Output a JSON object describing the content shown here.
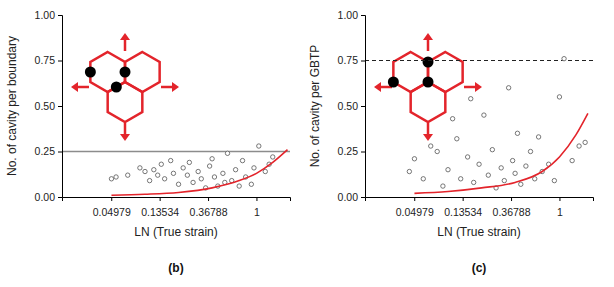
{
  "chart_data": [
    {
      "type": "scatter",
      "title": "(b)",
      "x_label": "LN (True strain)",
      "y_label": "No. of cavity per boundary",
      "log": "x",
      "grid": false,
      "xlim": [
        0.018,
        2.0
      ],
      "xticks": [
        0.04979,
        0.13534,
        0.36788,
        1
      ],
      "ylim": [
        0,
        1
      ],
      "yticks": [
        {
          "value": 0,
          "label": "0.00"
        },
        {
          "value": 0.25,
          "label": "0.25"
        },
        {
          "value": 0.5,
          "label": "0.50"
        },
        {
          "value": 0.75,
          "label": "0.75"
        },
        {
          "value": 1,
          "label": "1.00"
        }
      ],
      "series": [
        {
          "type": "line",
          "color": "#8c8c8c",
          "line_style": "solid",
          "x": [
            0.018,
            2.0
          ],
          "values": [
            0.25,
            0.25
          ]
        },
        {
          "type": "scatter",
          "color": "#555555",
          "marker": "open_circle",
          "x": [
            0.05,
            0.055,
            0.07,
            0.09,
            0.1,
            0.11,
            0.12,
            0.13,
            0.14,
            0.15,
            0.17,
            0.18,
            0.2,
            0.22,
            0.24,
            0.25,
            0.27,
            0.3,
            0.32,
            0.35,
            0.38,
            0.4,
            0.42,
            0.45,
            0.5,
            0.52,
            0.55,
            0.6,
            0.65,
            0.7,
            0.75,
            0.8,
            0.9,
            0.95,
            1.05,
            1.2,
            1.3,
            1.4
          ],
          "values": [
            0.1,
            0.11,
            0.12,
            0.16,
            0.14,
            0.09,
            0.15,
            0.12,
            0.18,
            0.1,
            0.2,
            0.13,
            0.07,
            0.16,
            0.12,
            0.19,
            0.08,
            0.14,
            0.1,
            0.05,
            0.17,
            0.21,
            0.11,
            0.06,
            0.13,
            0.08,
            0.24,
            0.09,
            0.15,
            0.06,
            0.2,
            0.11,
            0.07,
            0.16,
            0.28,
            0.14,
            0.18,
            0.22
          ]
        },
        {
          "type": "line",
          "color": "#e3242b",
          "line_style": "solid",
          "x": [
            0.05,
            0.1,
            0.2,
            0.4,
            0.7,
            1.0,
            1.4,
            1.9
          ],
          "values": [
            0.01,
            0.015,
            0.025,
            0.05,
            0.09,
            0.13,
            0.19,
            0.26
          ]
        }
      ]
    },
    {
      "type": "scatter",
      "title": "(c)",
      "x_label": "LN (True strain)",
      "y_label": "No. of cavity per GBTP",
      "log": "x",
      "grid": false,
      "xlim": [
        0.018,
        2.0
      ],
      "xticks": [
        0.04979,
        0.13534,
        0.36788,
        1
      ],
      "ylim": [
        0,
        1
      ],
      "yticks": [
        {
          "value": 0,
          "label": "0.00"
        },
        {
          "value": 0.25,
          "label": "0.25"
        },
        {
          "value": 0.5,
          "label": "0.50"
        },
        {
          "value": 0.75,
          "label": "0.75"
        },
        {
          "value": 1,
          "label": "1.00"
        }
      ],
      "series": [
        {
          "type": "line",
          "color": "#222222",
          "line_style": "dashed",
          "x": [
            0.018,
            2.0
          ],
          "values": [
            0.75,
            0.75
          ]
        },
        {
          "type": "scatter",
          "color": "#555555",
          "marker": "open_circle",
          "x": [
            0.045,
            0.05,
            0.06,
            0.07,
            0.08,
            0.09,
            0.1,
            0.11,
            0.12,
            0.13,
            0.15,
            0.16,
            0.17,
            0.19,
            0.21,
            0.23,
            0.25,
            0.27,
            0.3,
            0.32,
            0.35,
            0.38,
            0.4,
            0.42,
            0.45,
            0.5,
            0.55,
            0.6,
            0.65,
            0.7,
            0.8,
            0.9,
            1.0,
            1.1,
            1.3,
            1.5,
            1.7
          ],
          "values": [
            0.14,
            0.21,
            0.1,
            0.28,
            0.25,
            0.06,
            0.15,
            0.43,
            0.32,
            0.1,
            0.22,
            0.54,
            0.08,
            0.18,
            0.45,
            0.12,
            0.26,
            0.05,
            0.16,
            0.09,
            0.6,
            0.2,
            0.13,
            0.35,
            0.07,
            0.17,
            0.25,
            0.1,
            0.33,
            0.14,
            0.18,
            0.09,
            0.55,
            0.76,
            0.2,
            0.28,
            0.3
          ]
        },
        {
          "type": "line",
          "color": "#e3242b",
          "line_style": "solid",
          "x": [
            0.05,
            0.1,
            0.2,
            0.4,
            0.7,
            1.0,
            1.4,
            1.8
          ],
          "values": [
            0.02,
            0.03,
            0.05,
            0.08,
            0.14,
            0.22,
            0.34,
            0.46
          ]
        }
      ]
    }
  ]
}
